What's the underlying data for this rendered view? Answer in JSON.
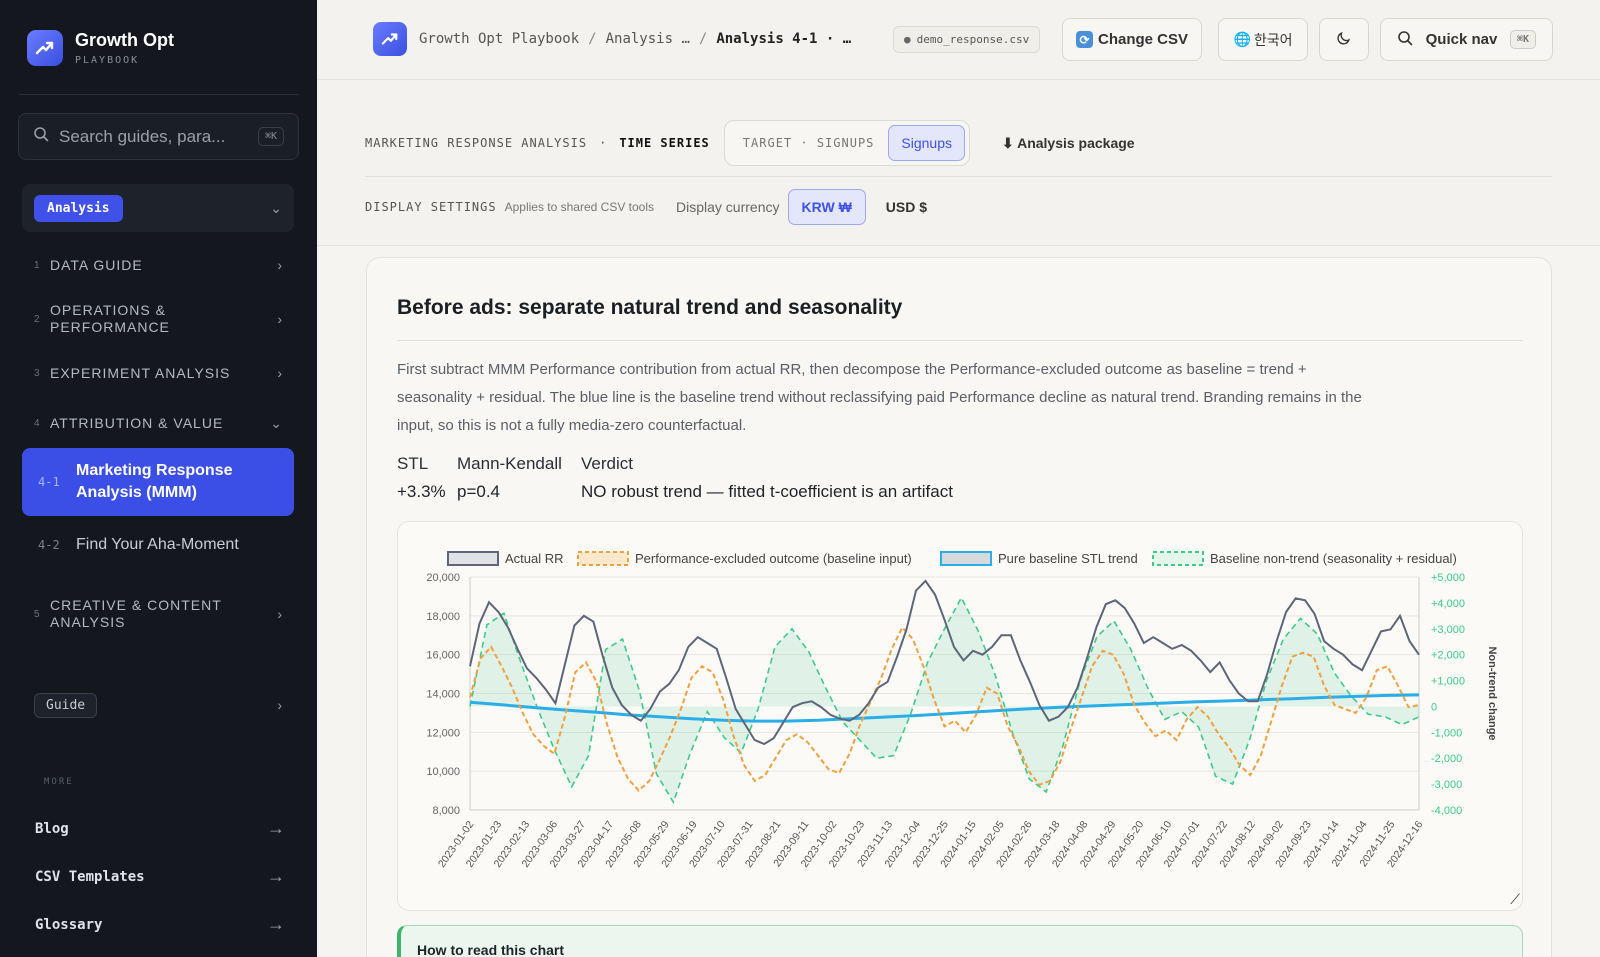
{
  "brand": {
    "name": "Growth Opt",
    "sub": "PLAYBOOK"
  },
  "sidebar": {
    "search_placeholder": "Search guides, para...",
    "search_shortcut": "⌘K",
    "section_select": "Analysis",
    "items": [
      {
        "num": "1",
        "label": "DATA GUIDE"
      },
      {
        "num": "2",
        "label": "OPERATIONS & PERFORMANCE"
      },
      {
        "num": "3",
        "label": "EXPERIMENT ANALYSIS"
      },
      {
        "num": "4",
        "label": "ATTRIBUTION & VALUE"
      },
      {
        "num": "5",
        "label": "CREATIVE & CONTENT ANALYSIS"
      }
    ],
    "sub_items": [
      {
        "num": "4-1",
        "label": "Marketing Response Analysis (MMM)"
      },
      {
        "num": "4-2",
        "label": "Find Your Aha-Moment"
      }
    ],
    "guide": "Guide",
    "more_label": "MORE",
    "links": [
      "Blog",
      "CSV Templates",
      "Glossary"
    ]
  },
  "topbar": {
    "crumbs": [
      "Growth Opt Playbook",
      "Analysis …",
      "Analysis 4-1 · …"
    ],
    "file": "demo_response.csv",
    "change_csv": "Change CSV",
    "lang": "한국어",
    "quick_nav": "Quick nav",
    "quick_nav_shortcut": "⌘K"
  },
  "controls": {
    "section": "MARKETING RESPONSE ANALYSIS",
    "dot": "·",
    "mode": "TIME SERIES",
    "target_cap": "TARGET · SIGNUPS",
    "target_value": "Signups",
    "package": "⬇ Analysis package",
    "display_settings": "DISPLAY SETTINGS",
    "display_note": "Applies to shared CSV tools",
    "currency_label": "Display currency",
    "currency_on": "KRW ₩",
    "currency_off": "USD $"
  },
  "card": {
    "title": "Before ads: separate natural trend and seasonality",
    "description": "First subtract MMM Performance contribution from actual RR, then decompose the Performance-excluded outcome as baseline = trend + seasonality + residual. The blue line is the baseline trend without reclassifying paid Performance decline as natural trend. Branding remains in the input, so this is not a fully media-zero counterfactual.",
    "stats_headers": [
      "STL",
      "Mann-Kendall",
      "Verdict"
    ],
    "stats_values": [
      "+3.3%",
      "p=0.4",
      "NO robust trend — fitted t-coefficient is an artifact"
    ],
    "howto": "How to read this chart"
  },
  "colors": {
    "accent": "#3f51e8",
    "actual": "#5d6678",
    "excluded": "#f0a040",
    "trend": "#29aee8",
    "nontrend": "#3fc98a"
  },
  "chart_data": {
    "type": "line",
    "xlabel": "",
    "ylabel": "",
    "y2label": "Non-trend change",
    "ylim": [
      8000,
      20000
    ],
    "y2lim": [
      -4000,
      5000
    ],
    "grid": true,
    "legend": "top",
    "x_ticks": [
      "2023-01-02",
      "2023-01-23",
      "2023-02-13",
      "2023-03-06",
      "2023-03-27",
      "2023-04-17",
      "2023-05-08",
      "2023-05-29",
      "2023-06-19",
      "2023-07-10",
      "2023-07-31",
      "2023-08-21",
      "2023-09-11",
      "2023-10-02",
      "2023-10-23",
      "2023-11-13",
      "2023-12-04",
      "2023-12-25",
      "2024-01-15",
      "2024-02-05",
      "2024-02-26",
      "2024-03-18",
      "2024-04-08",
      "2024-04-29",
      "2024-05-20",
      "2024-06-10",
      "2024-07-01",
      "2024-07-22",
      "2024-08-12",
      "2024-09-02",
      "2024-09-23",
      "2024-10-14",
      "2024-11-04",
      "2024-11-25",
      "2024-12-16"
    ],
    "y_ticks": [
      "8,000",
      "10,000",
      "12,000",
      "14,000",
      "16,000",
      "18,000",
      "20,000"
    ],
    "y2_ticks": [
      "-4,000",
      "-3,000",
      "-2,000",
      "-1,000",
      "0",
      "+1,000",
      "+2,000",
      "+3,000",
      "+4,000",
      "+5,000"
    ],
    "series": [
      {
        "name": "Actual RR",
        "values": [
          15400,
          17600,
          18700,
          18200,
          17400,
          16300,
          15300,
          14800,
          14200,
          13500,
          15500,
          17500,
          18000,
          17700,
          15900,
          14300,
          13400,
          12900,
          12600,
          13200,
          14100,
          14500,
          15200,
          16400,
          16900,
          16600,
          16300,
          14800,
          13200,
          12400,
          11600,
          11400,
          11700,
          12500,
          13300,
          13500,
          13600,
          13300,
          12900,
          12700,
          12600,
          12900,
          13500,
          14300,
          14600,
          15900,
          17300,
          19300,
          19800,
          19100,
          17800,
          16400,
          15700,
          16200,
          16000,
          16400,
          17000,
          17000,
          15700,
          14600,
          13400,
          12600,
          12800,
          13300,
          14300,
          15800,
          17400,
          18600,
          18800,
          18400,
          17600,
          16600,
          16900,
          16600,
          16300,
          16500,
          16200,
          15700,
          15100,
          15600,
          14700,
          14000,
          13600,
          13600,
          15000,
          16700,
          18200,
          18900,
          18800,
          18100,
          16700,
          16300,
          16000,
          15500,
          15200,
          16200,
          17200,
          17300,
          18000,
          16700,
          16000
        ]
      },
      {
        "name": "Performance-excluded outcome (baseline input)",
        "values": [
          13800,
          15800,
          16400,
          15400,
          14300,
          13000,
          11900,
          11300,
          10900,
          12800,
          15100,
          15600,
          14600,
          12400,
          10700,
          9600,
          9000,
          9500,
          10600,
          11800,
          13200,
          14800,
          15400,
          15100,
          13700,
          11800,
          10300,
          9500,
          9800,
          10700,
          11600,
          11900,
          11500,
          10800,
          10100,
          9900,
          10900,
          12400,
          13600,
          14800,
          16300,
          17400,
          16800,
          15400,
          13700,
          12300,
          12600,
          12000,
          12900,
          14300,
          14000,
          12300,
          11300,
          10000,
          9300,
          9500,
          10500,
          12200,
          13800,
          15400,
          16200,
          16000,
          15000,
          13400,
          12500,
          11800,
          12100,
          11600,
          12700,
          13300,
          12800,
          11900,
          11200,
          10300,
          9800,
          10800,
          12600,
          14400,
          15900,
          16100,
          15900,
          14400,
          13400,
          13200,
          13000,
          13800,
          15200,
          15400,
          14400,
          13300,
          13400
        ]
      },
      {
        "name": "Pure baseline STL trend",
        "values": [
          13550,
          13420,
          13280,
          13150,
          13030,
          12900,
          12800,
          12700,
          12620,
          12580,
          12580,
          12620,
          12700,
          12780,
          12850,
          12950,
          13050,
          13150,
          13240,
          13320,
          13380,
          13450,
          13510,
          13570,
          13620,
          13680,
          13730,
          13800,
          13850,
          13900,
          13930
        ]
      },
      {
        "name": "Baseline non-trend (seasonality + residual)",
        "values": [
          0,
          3150,
          3600,
          1700,
          -100,
          -1700,
          -3100,
          -1900,
          2200,
          2600,
          600,
          -2600,
          -3700,
          -1800,
          -200,
          -1200,
          -1800,
          -100,
          2300,
          3000,
          2100,
          700,
          -600,
          -1300,
          -2000,
          -1900,
          -300,
          1700,
          3000,
          4200,
          2900,
          1200,
          -1000,
          -2800,
          -3300,
          -1500,
          1000,
          2700,
          3300,
          2200,
          700,
          -500,
          -200,
          -800,
          -2700,
          -3000,
          -1300,
          1000,
          2600,
          3400,
          2800,
          1300,
          400,
          -300,
          -400,
          -700,
          -400
        ]
      }
    ]
  }
}
